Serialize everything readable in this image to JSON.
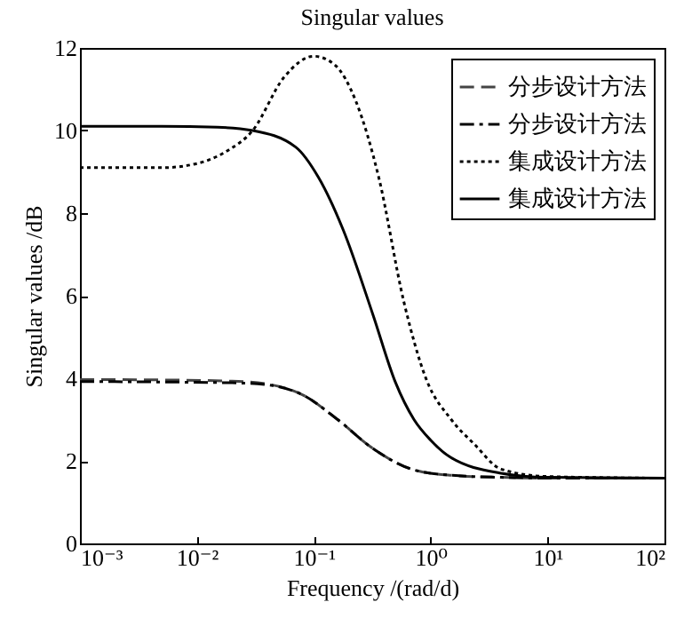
{
  "chart_data": {
    "type": "line",
    "title": "Singular values",
    "xlabel": "Frequency /(rad/d)",
    "ylabel": "Singular values /dB",
    "log": "x",
    "xlim": [
      0.001,
      100
    ],
    "xticks": [
      {
        "value": 0.001,
        "label": "10⁻³"
      },
      {
        "value": 0.01,
        "label": "10⁻²"
      },
      {
        "value": 0.1,
        "label": "10⁻¹"
      },
      {
        "value": 1,
        "label": "10⁰"
      },
      {
        "value": 10,
        "label": "10¹"
      },
      {
        "value": 100,
        "label": "10²"
      }
    ],
    "ylim": [
      0,
      12
    ],
    "yticks": [
      0,
      2,
      4,
      6,
      8,
      10,
      12
    ],
    "grid": false,
    "legend": "top right",
    "series": [
      {
        "name": "分步设计方法",
        "color": "#444444",
        "line_style": "dashed",
        "x": [
          0.001,
          0.005,
          0.02,
          0.04,
          0.08,
          0.16,
          0.32,
          0.72,
          1.5,
          4,
          10,
          100
        ],
        "values": [
          3.97,
          3.96,
          3.93,
          3.86,
          3.6,
          3.0,
          2.3,
          1.78,
          1.65,
          1.6,
          1.58,
          1.58
        ]
      },
      {
        "name": "分步设计方法",
        "color": "#000000",
        "line_style": "dashdot",
        "x": [
          0.001,
          0.005,
          0.02,
          0.04,
          0.08,
          0.16,
          0.32,
          0.72,
          1.5,
          4,
          10,
          100
        ],
        "values": [
          3.92,
          3.91,
          3.89,
          3.84,
          3.6,
          3.0,
          2.3,
          1.78,
          1.65,
          1.6,
          1.58,
          1.58
        ]
      },
      {
        "name": "集成设计方法",
        "color": "#000000",
        "line_style": "dotted",
        "x": [
          0.001,
          0.005,
          0.01,
          0.018,
          0.03,
          0.056,
          0.1,
          0.15,
          0.23,
          0.36,
          0.59,
          0.91,
          1.5,
          2.37,
          4,
          10,
          100
        ],
        "values": [
          9.1,
          9.1,
          9.2,
          9.5,
          10.0,
          11.3,
          11.8,
          11.6,
          10.7,
          8.86,
          5.85,
          4.0,
          3.0,
          2.4,
          1.8,
          1.62,
          1.58
        ]
      },
      {
        "name": "集成设计方法",
        "color": "#000000",
        "line_style": "solid",
        "x": [
          0.001,
          0.005,
          0.015,
          0.03,
          0.07,
          0.11,
          0.18,
          0.32,
          0.5,
          0.72,
          1.0,
          1.45,
          4,
          10,
          100
        ],
        "values": [
          10.1,
          10.1,
          10.08,
          10.0,
          9.6,
          8.86,
          7.57,
          5.55,
          3.9,
          3.0,
          2.5,
          2.1,
          1.7,
          1.6,
          1.58
        ]
      }
    ]
  }
}
